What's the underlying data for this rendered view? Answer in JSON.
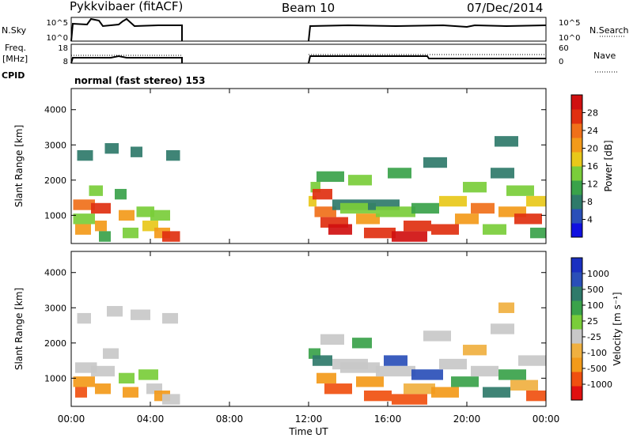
{
  "header": {
    "station": "Pykkvibaer (fitACF)",
    "beam": "Beam 10",
    "date": "07/Dec/2014"
  },
  "strip": {
    "nsky_label": "N.Sky",
    "nsky_ticks": [
      "10^5",
      "10^0"
    ],
    "nsearch_label": "N.Search",
    "nsearch_ticks": [
      "10^5",
      "10^0"
    ],
    "freq_label_1": "Freq.",
    "freq_label_2": "[MHz]",
    "freq_ticks": [
      "18",
      "8"
    ],
    "nave_label": "Nave",
    "nave_ticks": [
      "60",
      "0"
    ],
    "cpid_label": "CPID",
    "cpid_value": "normal (fast stereo) 153"
  },
  "chart_data": [
    {
      "type": "heatmap",
      "name": "power",
      "ylabel": "Slant Range [km]",
      "yticks": [
        "1000",
        "2000",
        "3000",
        "4000"
      ],
      "ylim": [
        200,
        4600
      ],
      "xlim": [
        0,
        24
      ],
      "colorbar_label": "Power [dB]",
      "colorbar_ticks": [
        "28",
        "24",
        "20",
        "16",
        "12",
        "8",
        "4"
      ],
      "colors": [
        "#1010e0",
        "#2a4fb8",
        "#2f7a6a",
        "#3aa24a",
        "#7acd3a",
        "#e8c81a",
        "#f39a1a",
        "#f0701a",
        "#e03010",
        "#d01010"
      ],
      "cells": [
        [
          0.1,
          1.2,
          900,
          14
        ],
        [
          0.1,
          1.2,
          1300,
          22
        ],
        [
          0.2,
          1.0,
          600,
          18
        ],
        [
          0.3,
          1.1,
          2700,
          6
        ],
        [
          0.9,
          1.6,
          1700,
          12
        ],
        [
          1.0,
          2.0,
          1200,
          26
        ],
        [
          1.2,
          1.8,
          700,
          20
        ],
        [
          1.4,
          2.0,
          400,
          10
        ],
        [
          1.7,
          2.4,
          2900,
          8
        ],
        [
          2.2,
          2.8,
          1600,
          10
        ],
        [
          2.4,
          3.2,
          1000,
          18
        ],
        [
          2.6,
          3.4,
          500,
          14
        ],
        [
          3.0,
          3.6,
          2800,
          6
        ],
        [
          3.3,
          4.2,
          1100,
          12
        ],
        [
          3.6,
          4.4,
          700,
          16
        ],
        [
          4.0,
          5.0,
          1000,
          14
        ],
        [
          4.2,
          5.0,
          500,
          20
        ],
        [
          4.6,
          5.5,
          400,
          24
        ],
        [
          4.8,
          5.5,
          2700,
          6
        ],
        [
          12.0,
          12.4,
          1400,
          16
        ],
        [
          12.1,
          12.6,
          1800,
          12
        ],
        [
          12.2,
          13.2,
          1600,
          26
        ],
        [
          12.3,
          13.4,
          1100,
          22
        ],
        [
          12.4,
          13.8,
          2100,
          10
        ],
        [
          12.6,
          14.0,
          800,
          24
        ],
        [
          13.0,
          14.2,
          600,
          28
        ],
        [
          13.2,
          15.0,
          1300,
          8
        ],
        [
          13.6,
          15.4,
          1200,
          14
        ],
        [
          14.0,
          15.2,
          2000,
          12
        ],
        [
          14.4,
          15.6,
          900,
          20
        ],
        [
          14.8,
          16.4,
          500,
          26
        ],
        [
          15.0,
          16.6,
          1300,
          6
        ],
        [
          15.4,
          17.4,
          1100,
          12
        ],
        [
          16.0,
          17.2,
          2200,
          10
        ],
        [
          16.2,
          18.0,
          400,
          28
        ],
        [
          16.8,
          18.2,
          700,
          24
        ],
        [
          17.2,
          18.6,
          1200,
          10
        ],
        [
          17.8,
          19.0,
          2500,
          8
        ],
        [
          18.2,
          19.6,
          600,
          26
        ],
        [
          18.6,
          20.0,
          1400,
          16
        ],
        [
          19.4,
          20.6,
          900,
          18
        ],
        [
          19.8,
          21.0,
          1800,
          12
        ],
        [
          20.2,
          21.4,
          1200,
          22
        ],
        [
          20.8,
          22.0,
          600,
          14
        ],
        [
          21.2,
          22.4,
          2200,
          8
        ],
        [
          21.6,
          23.0,
          1100,
          20
        ],
        [
          22.0,
          23.4,
          1700,
          12
        ],
        [
          22.4,
          23.8,
          900,
          24
        ],
        [
          23.0,
          24.0,
          1400,
          16
        ],
        [
          23.2,
          24.0,
          500,
          10
        ],
        [
          21.4,
          22.6,
          3100,
          6
        ]
      ]
    },
    {
      "type": "heatmap",
      "name": "velocity",
      "xlabel": "Time UT",
      "ylabel": "Slant Range [km]",
      "yticks": [
        "1000",
        "2000",
        "3000",
        "4000"
      ],
      "xticks": [
        "00:00",
        "04:00",
        "08:00",
        "12:00",
        "16:00",
        "20:00",
        "00:00"
      ],
      "ylim": [
        200,
        4600
      ],
      "xlim": [
        0,
        24
      ],
      "colorbar_label": "Velocity [m s⁻¹]",
      "colorbar_ticks": [
        "1000",
        "500",
        "100",
        "25",
        "-25",
        "-100",
        "-500",
        "-1000"
      ],
      "colors": [
        "#e01010",
        "#f05010",
        "#f39a1a",
        "#f0b040",
        "#c8c8c8",
        "#7acd3a",
        "#3aa24a",
        "#2f7a6a",
        "#2a4fb8",
        "#1a30c0"
      ],
      "cells": [
        [
          0.1,
          1.2,
          900,
          -100
        ],
        [
          0.2,
          1.3,
          1300,
          0
        ],
        [
          0.3,
          1.0,
          2700,
          0
        ],
        [
          0.2,
          0.8,
          600,
          -300
        ],
        [
          1.0,
          2.2,
          1200,
          0
        ],
        [
          1.2,
          2.0,
          700,
          -150
        ],
        [
          1.6,
          2.4,
          1700,
          0
        ],
        [
          1.8,
          2.6,
          2900,
          0
        ],
        [
          2.4,
          3.2,
          1000,
          60
        ],
        [
          2.6,
          3.4,
          600,
          -120
        ],
        [
          3.0,
          4.0,
          2800,
          0
        ],
        [
          3.4,
          4.4,
          1100,
          80
        ],
        [
          3.8,
          4.6,
          700,
          0
        ],
        [
          4.2,
          5.0,
          500,
          -200
        ],
        [
          4.6,
          5.5,
          400,
          0
        ],
        [
          4.6,
          5.4,
          2700,
          0
        ],
        [
          12.0,
          12.6,
          1700,
          150
        ],
        [
          12.2,
          13.2,
          1500,
          400
        ],
        [
          12.4,
          13.4,
          1000,
          -120
        ],
        [
          12.6,
          13.8,
          2100,
          0
        ],
        [
          12.8,
          14.2,
          700,
          -300
        ],
        [
          13.2,
          15.0,
          1400,
          0
        ],
        [
          13.6,
          15.6,
          1300,
          0
        ],
        [
          14.2,
          15.2,
          2000,
          200
        ],
        [
          14.4,
          15.8,
          900,
          -150
        ],
        [
          14.8,
          16.2,
          500,
          -400
        ],
        [
          15.4,
          17.4,
          1200,
          0
        ],
        [
          15.8,
          17.0,
          1500,
          600
        ],
        [
          16.2,
          18.0,
          400,
          -250
        ],
        [
          16.8,
          18.4,
          700,
          -80
        ],
        [
          17.2,
          18.8,
          1100,
          800
        ],
        [
          17.8,
          19.2,
          2200,
          0
        ],
        [
          18.2,
          19.6,
          600,
          -180
        ],
        [
          18.6,
          20.0,
          1400,
          0
        ],
        [
          19.2,
          20.6,
          900,
          200
        ],
        [
          19.8,
          21.0,
          1800,
          -60
        ],
        [
          20.2,
          21.6,
          1200,
          0
        ],
        [
          20.8,
          22.2,
          600,
          350
        ],
        [
          21.2,
          22.4,
          2400,
          0
        ],
        [
          21.6,
          23.0,
          1100,
          120
        ],
        [
          22.2,
          23.6,
          800,
          -90
        ],
        [
          22.6,
          24.0,
          1500,
          0
        ],
        [
          23.0,
          24.0,
          500,
          -400
        ],
        [
          21.6,
          22.4,
          3000,
          -60
        ]
      ]
    }
  ]
}
